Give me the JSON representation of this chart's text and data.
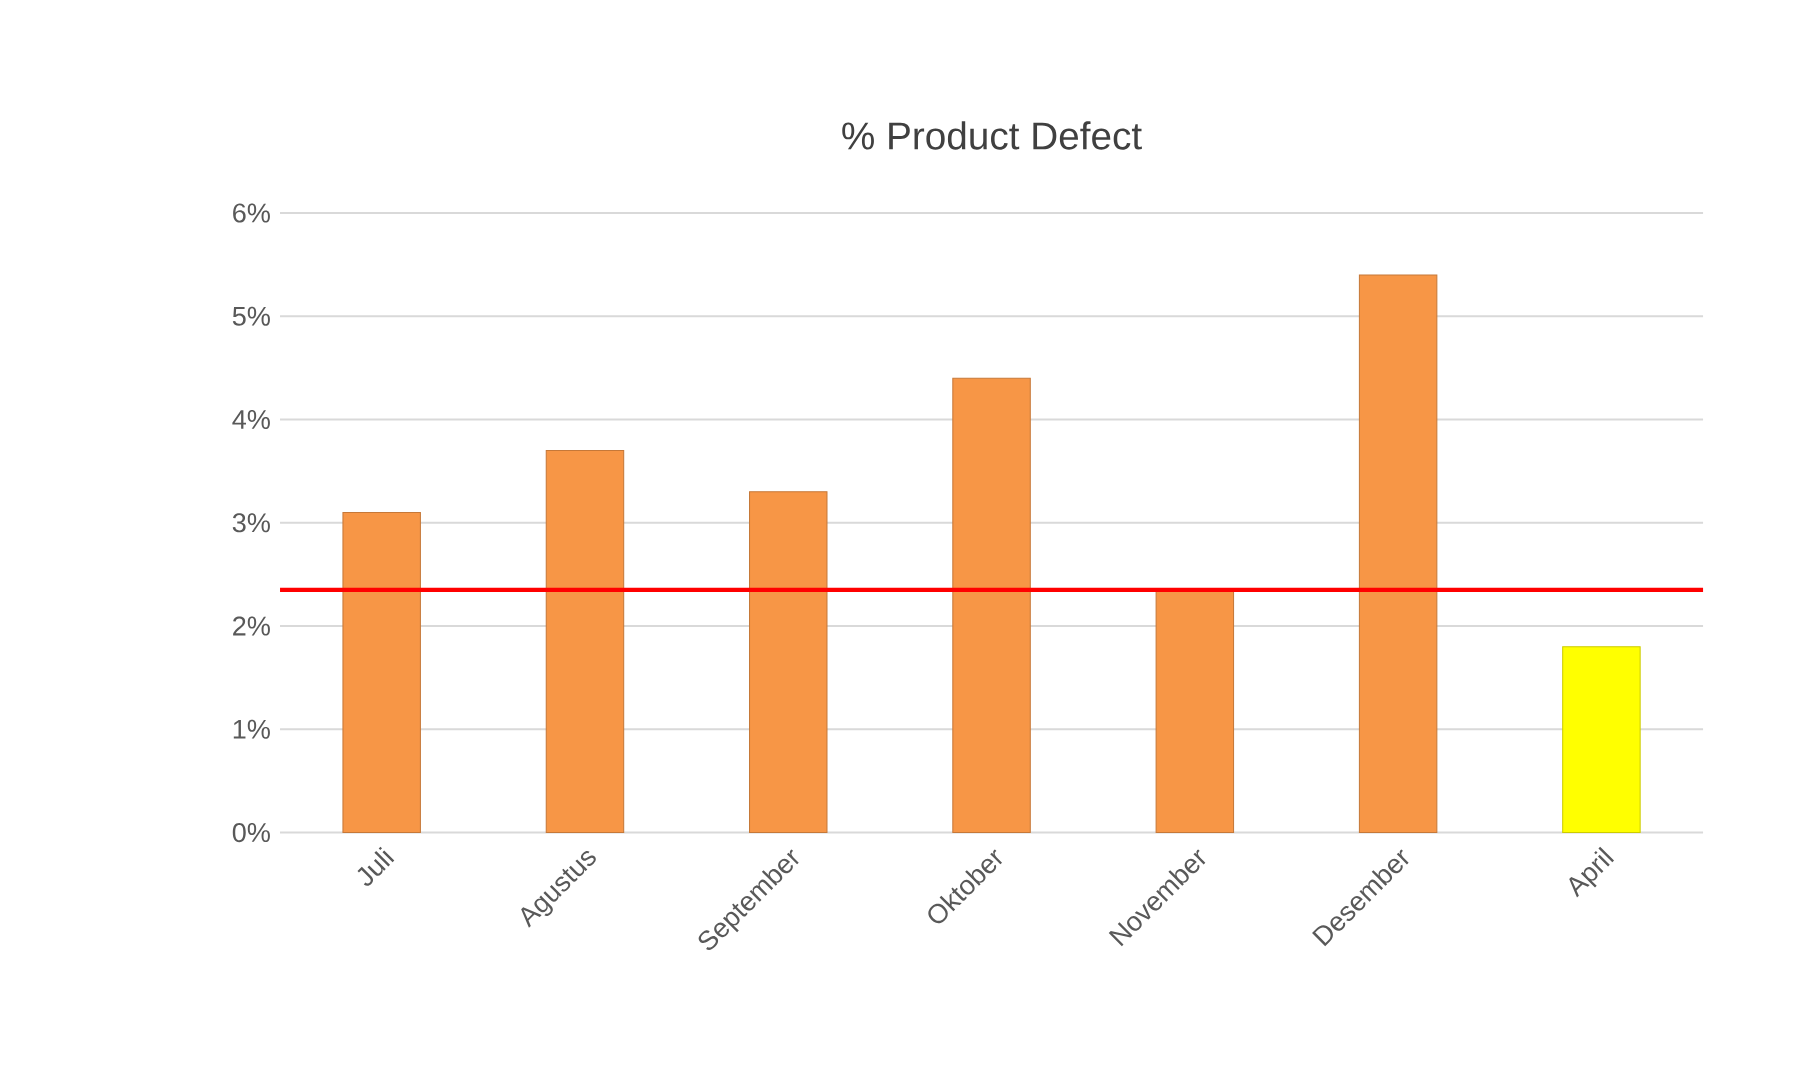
{
  "chart_data": {
    "type": "bar",
    "title": "% Product Defect",
    "categories": [
      "Juli",
      "Agustus",
      "September",
      "Oktober",
      "November",
      "Desember",
      "April"
    ],
    "values": [
      3.1,
      3.7,
      3.3,
      4.4,
      2.35,
      5.4,
      1.8
    ],
    "colors": [
      "#f79646",
      "#f79646",
      "#f79646",
      "#f79646",
      "#f79646",
      "#f79646",
      "#ffff00"
    ],
    "ylim": [
      0,
      6
    ],
    "yticks": [
      {
        "value": 0,
        "label": "0%"
      },
      {
        "value": 1,
        "label": "1%"
      },
      {
        "value": 2,
        "label": "2%"
      },
      {
        "value": 3,
        "label": "3%"
      },
      {
        "value": 4,
        "label": "4%"
      },
      {
        "value": 5,
        "label": "5%"
      },
      {
        "value": 6,
        "label": "6%"
      }
    ],
    "grid": "y",
    "ref_lines": [
      {
        "axis": "y",
        "value": 2.35,
        "color": "#ff0000"
      }
    ]
  }
}
